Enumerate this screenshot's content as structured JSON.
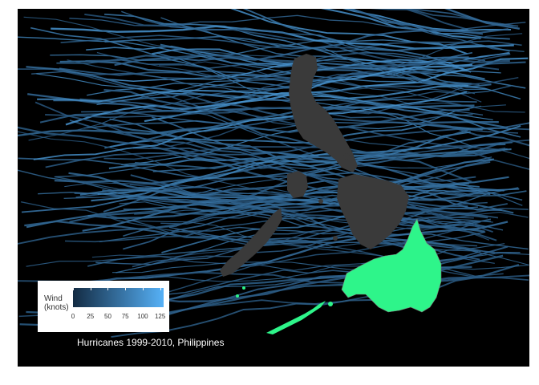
{
  "map": {
    "title": "Hurricanes 1999-2010, Philippines",
    "background_color": "#000000",
    "track_color_low": "#132b43",
    "track_color_high": "#56b1f7",
    "landmass_color": "#3a3a3a",
    "highlight_region_color": "#2ef58a",
    "highlight_border_color": "#7a7a7a"
  },
  "legend": {
    "title_line1": "Wind",
    "title_line2": "(knots)",
    "ticks": [
      "0",
      "25",
      "50",
      "75",
      "100",
      "125"
    ],
    "range": [
      0,
      130
    ]
  }
}
